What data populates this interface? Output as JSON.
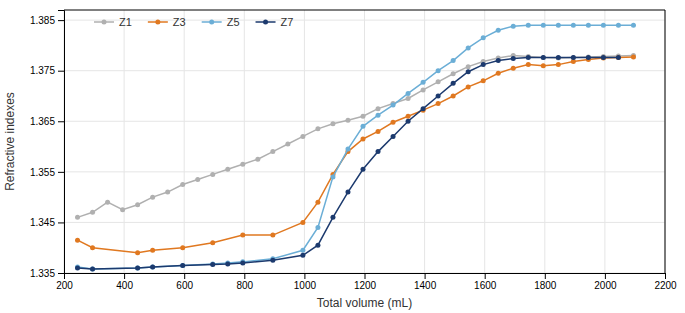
{
  "chart_data": {
    "type": "line",
    "xlabel": "Total volume (mL)",
    "ylabel": "Refractive indexes",
    "xlim": [
      200,
      2200
    ],
    "ylim": [
      1.335,
      1.387
    ],
    "xticks": [
      200,
      400,
      600,
      800,
      1000,
      1200,
      1400,
      1600,
      1800,
      2000,
      2200
    ],
    "yticks": [
      1.335,
      1.345,
      1.355,
      1.365,
      1.375,
      1.385
    ],
    "grid": true,
    "legend": "upper left",
    "marker": "circle",
    "series": [
      {
        "name": "Z1",
        "color": "#b0b0b0",
        "x": [
          245,
          295,
          345,
          395,
          445,
          495,
          545,
          595,
          645,
          695,
          745,
          795,
          845,
          895,
          945,
          995,
          1045,
          1095,
          1145,
          1195,
          1245,
          1295,
          1345,
          1395,
          1445,
          1495,
          1545,
          1595,
          1645,
          1695,
          1745,
          1795,
          1845,
          1895,
          1945,
          1995,
          2045,
          2095
        ],
        "values": [
          1.346,
          1.347,
          1.349,
          1.3475,
          1.3485,
          1.35,
          1.351,
          1.3525,
          1.3535,
          1.3545,
          1.3555,
          1.3565,
          1.3575,
          1.359,
          1.3605,
          1.362,
          1.3635,
          1.3645,
          1.3652,
          1.366,
          1.3675,
          1.3685,
          1.3695,
          1.3712,
          1.3728,
          1.3744,
          1.3758,
          1.3768,
          1.3775,
          1.378,
          1.3778,
          1.3776,
          1.3775,
          1.3776,
          1.3777,
          1.3778,
          1.3779,
          1.378
        ]
      },
      {
        "name": "Z3",
        "color": "#e07820",
        "x": [
          245,
          295,
          445,
          495,
          595,
          695,
          795,
          895,
          995,
          1045,
          1095,
          1145,
          1195,
          1245,
          1295,
          1345,
          1395,
          1445,
          1495,
          1545,
          1595,
          1645,
          1695,
          1745,
          1795,
          1845,
          1895,
          1945,
          1995,
          2045,
          2095
        ],
        "values": [
          1.3415,
          1.34,
          1.339,
          1.3395,
          1.34,
          1.341,
          1.3425,
          1.3425,
          1.345,
          1.349,
          1.3545,
          1.359,
          1.3615,
          1.363,
          1.3648,
          1.366,
          1.3672,
          1.3685,
          1.37,
          1.3718,
          1.373,
          1.3745,
          1.3755,
          1.3762,
          1.376,
          1.3762,
          1.3768,
          1.3772,
          1.3775,
          1.3776,
          1.3777
        ]
      },
      {
        "name": "Z5",
        "color": "#6baed6",
        "x": [
          245,
          295,
          445,
          495,
          595,
          695,
          745,
          795,
          895,
          995,
          1045,
          1095,
          1145,
          1195,
          1245,
          1295,
          1345,
          1395,
          1445,
          1495,
          1545,
          1595,
          1645,
          1695,
          1745,
          1795,
          1845,
          1895,
          1945,
          1995,
          2045,
          2095
        ],
        "values": [
          1.3362,
          1.3358,
          1.336,
          1.3362,
          1.3365,
          1.3368,
          1.337,
          1.3372,
          1.3378,
          1.3395,
          1.344,
          1.354,
          1.3595,
          1.364,
          1.3662,
          1.3682,
          1.3705,
          1.3727,
          1.375,
          1.377,
          1.3795,
          1.3815,
          1.383,
          1.3838,
          1.384,
          1.384,
          1.384,
          1.384,
          1.384,
          1.384,
          1.384,
          1.384
        ]
      },
      {
        "name": "Z7",
        "color": "#1c3a6e",
        "x": [
          245,
          295,
          445,
          495,
          595,
          695,
          745,
          795,
          895,
          995,
          1045,
          1095,
          1145,
          1195,
          1245,
          1295,
          1345,
          1395,
          1445,
          1495,
          1545,
          1595,
          1645,
          1695,
          1745,
          1795,
          1845,
          1895,
          1945,
          1995,
          2045
        ],
        "values": [
          1.336,
          1.3358,
          1.336,
          1.3362,
          1.3365,
          1.3367,
          1.3368,
          1.337,
          1.3375,
          1.3385,
          1.3405,
          1.346,
          1.351,
          1.3555,
          1.359,
          1.362,
          1.365,
          1.3675,
          1.37,
          1.3725,
          1.3748,
          1.3762,
          1.377,
          1.3774,
          1.3776,
          1.3776,
          1.3776,
          1.3776,
          1.3776,
          1.3776,
          1.3776
        ]
      }
    ]
  }
}
